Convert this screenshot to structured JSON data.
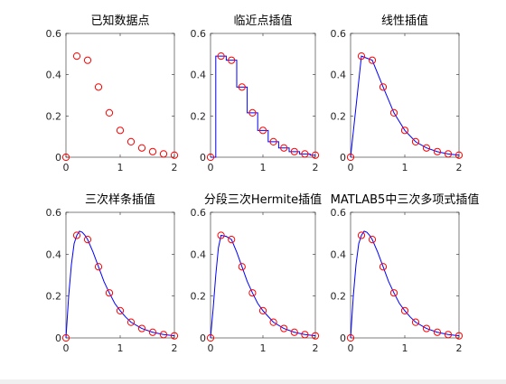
{
  "colors": {
    "marker": "#ff0000",
    "line": "#0000ff",
    "axes": "#262626",
    "background": "#ffffff"
  },
  "chart_data": [
    {
      "type": "scatter",
      "title": "已知数据点",
      "xlim": [
        0,
        2
      ],
      "ylim": [
        0,
        0.6
      ],
      "xticks": [
        "0",
        "1",
        "2"
      ],
      "yticks": [
        "0",
        "0.2",
        "0.4",
        "0.6"
      ],
      "grid": false,
      "points": {
        "x": [
          0,
          0.2,
          0.4,
          0.6,
          0.8,
          1.0,
          1.2,
          1.4,
          1.6,
          1.8,
          2.0
        ],
        "y": [
          0,
          0.49,
          0.47,
          0.34,
          0.215,
          0.13,
          0.075,
          0.045,
          0.027,
          0.016,
          0.01
        ]
      }
    },
    {
      "type": "line",
      "title": "临近点插值",
      "xlim": [
        0,
        2
      ],
      "ylim": [
        0,
        0.6
      ],
      "xticks": [
        "0",
        "1",
        "2"
      ],
      "yticks": [
        "0",
        "0.2",
        "0.4",
        "0.6"
      ],
      "grid": false,
      "points": {
        "x": [
          0,
          0.2,
          0.4,
          0.6,
          0.8,
          1.0,
          1.2,
          1.4,
          1.6,
          1.8,
          2.0
        ],
        "y": [
          0,
          0.49,
          0.47,
          0.34,
          0.215,
          0.13,
          0.075,
          0.045,
          0.027,
          0.016,
          0.01
        ]
      },
      "curve": {
        "x": [
          0,
          0.1,
          0.1,
          0.3,
          0.3,
          0.5,
          0.5,
          0.7,
          0.7,
          0.9,
          0.9,
          1.1,
          1.1,
          1.3,
          1.3,
          1.5,
          1.5,
          1.7,
          1.7,
          1.9,
          1.9,
          2.0
        ],
        "y": [
          0,
          0,
          0.49,
          0.49,
          0.47,
          0.47,
          0.34,
          0.34,
          0.215,
          0.215,
          0.13,
          0.13,
          0.075,
          0.075,
          0.045,
          0.045,
          0.027,
          0.027,
          0.016,
          0.016,
          0.01,
          0.01
        ]
      }
    },
    {
      "type": "line",
      "title": "线性插值",
      "xlim": [
        0,
        2
      ],
      "ylim": [
        0,
        0.6
      ],
      "xticks": [
        "0",
        "1",
        "2"
      ],
      "yticks": [
        "0",
        "0.2",
        "0.4",
        "0.6"
      ],
      "grid": false,
      "points": {
        "x": [
          0,
          0.2,
          0.4,
          0.6,
          0.8,
          1.0,
          1.2,
          1.4,
          1.6,
          1.8,
          2.0
        ],
        "y": [
          0,
          0.49,
          0.47,
          0.34,
          0.215,
          0.13,
          0.075,
          0.045,
          0.027,
          0.016,
          0.01
        ]
      },
      "curve": {
        "x": [
          0,
          0.2,
          0.4,
          0.6,
          0.8,
          1.0,
          1.2,
          1.4,
          1.6,
          1.8,
          2.0
        ],
        "y": [
          0,
          0.49,
          0.47,
          0.34,
          0.215,
          0.13,
          0.075,
          0.045,
          0.027,
          0.016,
          0.01
        ]
      }
    },
    {
      "type": "line",
      "title": "三次样条插值",
      "xlim": [
        0,
        2
      ],
      "ylim": [
        0,
        0.6
      ],
      "xticks": [
        "0",
        "1",
        "2"
      ],
      "yticks": [
        "0",
        "0.2",
        "0.4",
        "0.6"
      ],
      "grid": false,
      "points": {
        "x": [
          0,
          0.2,
          0.4,
          0.6,
          0.8,
          1.0,
          1.2,
          1.4,
          1.6,
          1.8,
          2.0
        ],
        "y": [
          0,
          0.49,
          0.47,
          0.34,
          0.215,
          0.13,
          0.075,
          0.045,
          0.027,
          0.016,
          0.01
        ]
      },
      "curve": {
        "x": [
          0,
          0.05,
          0.1,
          0.15,
          0.2,
          0.25,
          0.3,
          0.35,
          0.4,
          0.5,
          0.6,
          0.7,
          0.8,
          0.9,
          1.0,
          1.1,
          1.2,
          1.4,
          1.6,
          1.8,
          2.0
        ],
        "y": [
          0,
          0.2,
          0.35,
          0.45,
          0.49,
          0.51,
          0.505,
          0.49,
          0.47,
          0.41,
          0.34,
          0.27,
          0.215,
          0.165,
          0.13,
          0.1,
          0.075,
          0.045,
          0.027,
          0.016,
          0.01
        ]
      }
    },
    {
      "type": "line",
      "title": "分段三次Hermite插值",
      "xlim": [
        0,
        2
      ],
      "ylim": [
        0,
        0.6
      ],
      "xticks": [
        "0",
        "1",
        "2"
      ],
      "yticks": [
        "0",
        "0.2",
        "0.4",
        "0.6"
      ],
      "grid": false,
      "points": {
        "x": [
          0,
          0.2,
          0.4,
          0.6,
          0.8,
          1.0,
          1.2,
          1.4,
          1.6,
          1.8,
          2.0
        ],
        "y": [
          0,
          0.49,
          0.47,
          0.34,
          0.215,
          0.13,
          0.075,
          0.045,
          0.027,
          0.016,
          0.01
        ]
      },
      "curve": {
        "x": [
          0,
          0.05,
          0.1,
          0.15,
          0.2,
          0.3,
          0.4,
          0.5,
          0.6,
          0.7,
          0.8,
          0.9,
          1.0,
          1.2,
          1.4,
          1.6,
          1.8,
          2.0
        ],
        "y": [
          0,
          0.14,
          0.3,
          0.43,
          0.49,
          0.485,
          0.47,
          0.41,
          0.34,
          0.27,
          0.215,
          0.165,
          0.13,
          0.075,
          0.045,
          0.027,
          0.016,
          0.01
        ]
      }
    },
    {
      "type": "line",
      "title": "MATLAB5中三次多项式插值",
      "xlim": [
        0,
        2
      ],
      "ylim": [
        0,
        0.6
      ],
      "xticks": [
        "0",
        "1",
        "2"
      ],
      "yticks": [
        "0",
        "0.2",
        "0.4",
        "0.6"
      ],
      "grid": false,
      "points": {
        "x": [
          0,
          0.2,
          0.4,
          0.6,
          0.8,
          1.0,
          1.2,
          1.4,
          1.6,
          1.8,
          2.0
        ],
        "y": [
          0,
          0.49,
          0.47,
          0.34,
          0.215,
          0.13,
          0.075,
          0.045,
          0.027,
          0.016,
          0.01
        ]
      },
      "curve": {
        "x": [
          0,
          0.05,
          0.1,
          0.15,
          0.2,
          0.25,
          0.3,
          0.35,
          0.4,
          0.5,
          0.6,
          0.7,
          0.8,
          0.9,
          1.0,
          1.1,
          1.2,
          1.4,
          1.6,
          1.8,
          2.0
        ],
        "y": [
          0,
          0.2,
          0.35,
          0.45,
          0.49,
          0.51,
          0.505,
          0.49,
          0.47,
          0.41,
          0.34,
          0.27,
          0.215,
          0.165,
          0.13,
          0.1,
          0.075,
          0.045,
          0.027,
          0.016,
          0.01
        ]
      }
    }
  ]
}
